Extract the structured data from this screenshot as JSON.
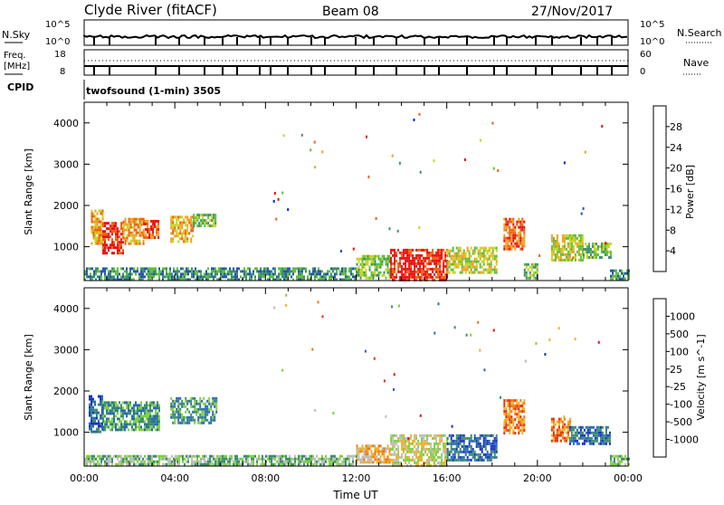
{
  "header": {
    "station": "Clyde River (fitACF)",
    "beam": "Beam 08",
    "date": "27/Nov/2017"
  },
  "noise_panel": {
    "left_label": "N.Sky",
    "right_label": "N.Search",
    "left_ticks": [
      "10^5",
      "10^0"
    ],
    "right_ticks": [
      "10^5",
      "10^0"
    ]
  },
  "freq_panel": {
    "left_label_line1": "Freq.",
    "left_label_line2": "[MHz]",
    "right_label": "Nave",
    "left_ticks": [
      "18",
      "8"
    ],
    "right_ticks": [
      "60",
      "0"
    ]
  },
  "cpid": {
    "label": "CPID",
    "value": "twofsound (1-min) 3505"
  },
  "chart_data": [
    {
      "type": "heatmap",
      "panel": "power",
      "ylabel": "Slant Range [km]",
      "xlabel": "",
      "xlim": [
        0,
        24
      ],
      "ylim": [
        180,
        4500
      ],
      "yticks": [
        "1000",
        "2000",
        "3000",
        "4000"
      ],
      "colorbar_label": "Power [dB]",
      "colorbar_ticks": [
        "4",
        "8",
        "12",
        "16",
        "20",
        "24",
        "28"
      ],
      "colorbar_colors": [
        "#0a20e0",
        "#2855b0",
        "#3b8f6a",
        "#5dbf3a",
        "#c8d420",
        "#f0a020",
        "#f06010",
        "#e81010"
      ],
      "echo_regions_hours_km_level": [
        {
          "t0": 0.3,
          "t1": 0.8,
          "r0": 1050,
          "r1": 1900,
          "level": 5
        },
        {
          "t0": 0.8,
          "t1": 1.7,
          "r0": 850,
          "r1": 1600,
          "level": 7
        },
        {
          "t0": 1.7,
          "t1": 2.6,
          "r0": 1100,
          "r1": 1700,
          "level": 5
        },
        {
          "t0": 2.6,
          "t1": 3.3,
          "r0": 1200,
          "r1": 1650,
          "level": 6
        },
        {
          "t0": 3.8,
          "t1": 4.8,
          "r0": 1150,
          "r1": 1750,
          "level": 5
        },
        {
          "t0": 4.8,
          "t1": 5.8,
          "r0": 1500,
          "r1": 1800,
          "level": 3
        },
        {
          "t0": 0.0,
          "t1": 12.0,
          "r0": 200,
          "r1": 500,
          "level": 2
        },
        {
          "t0": 12.0,
          "t1": 13.5,
          "r0": 250,
          "r1": 800,
          "level": 3
        },
        {
          "t0": 13.5,
          "t1": 16.0,
          "r0": 200,
          "r1": 950,
          "level": 7
        },
        {
          "t0": 16.0,
          "t1": 18.2,
          "r0": 350,
          "r1": 1000,
          "level": 4
        },
        {
          "t0": 18.5,
          "t1": 19.4,
          "r0": 950,
          "r1": 1700,
          "level": 6
        },
        {
          "t0": 19.4,
          "t1": 20.0,
          "r0": 250,
          "r1": 600,
          "level": 3
        },
        {
          "t0": 20.6,
          "t1": 22.0,
          "r0": 700,
          "r1": 1300,
          "level": 4
        },
        {
          "t0": 22.0,
          "t1": 23.2,
          "r0": 750,
          "r1": 1100,
          "level": 3
        },
        {
          "t0": 23.2,
          "t1": 24.0,
          "r0": 200,
          "r1": 450,
          "level": 2
        }
      ]
    },
    {
      "type": "heatmap",
      "panel": "velocity",
      "ylabel": "Slant Range [km]",
      "xlabel": "Time UT",
      "xlim": [
        0,
        24
      ],
      "ylim": [
        180,
        4500
      ],
      "xticks": [
        "00:00",
        "04:00",
        "08:00",
        "12:00",
        "16:00",
        "20:00",
        "00:00"
      ],
      "yticks": [
        "1000",
        "2000",
        "3000",
        "4000"
      ],
      "colorbar_label": "Velocity [m s^-1]",
      "colorbar_ticks": [
        "1000",
        "500",
        "100",
        "25",
        "-25",
        "-100",
        "-500",
        "-1000"
      ],
      "colorbar_colors": [
        "#1a30c8",
        "#2a6ab0",
        "#3b8f6a",
        "#7fd040",
        "#bdbdbd",
        "#f0b020",
        "#f07810",
        "#e83010",
        "#e80a0a"
      ],
      "echo_regions_hours_km_level": [
        {
          "t0": 0.2,
          "t1": 0.8,
          "r0": 1000,
          "r1": 1900,
          "level": 1
        },
        {
          "t0": 0.8,
          "t1": 3.3,
          "r0": 1050,
          "r1": 1750,
          "level": 2
        },
        {
          "t0": 3.8,
          "t1": 5.8,
          "r0": 1250,
          "r1": 1850,
          "level": 2
        },
        {
          "t0": 0.0,
          "t1": 12.0,
          "r0": 200,
          "r1": 450,
          "level": 3
        },
        {
          "t0": 12.0,
          "t1": 13.5,
          "r0": 250,
          "r1": 700,
          "level": 5
        },
        {
          "t0": 13.5,
          "t1": 16.0,
          "r0": 200,
          "r1": 950,
          "level": 4
        },
        {
          "t0": 16.0,
          "t1": 18.2,
          "r0": 300,
          "r1": 950,
          "level": 1
        },
        {
          "t0": 18.5,
          "t1": 19.4,
          "r0": 1000,
          "r1": 1800,
          "level": 6
        },
        {
          "t0": 20.6,
          "t1": 21.4,
          "r0": 800,
          "r1": 1350,
          "level": 6
        },
        {
          "t0": 21.4,
          "t1": 23.2,
          "r0": 700,
          "r1": 1150,
          "level": 1
        },
        {
          "t0": 23.2,
          "t1": 24.0,
          "r0": 200,
          "r1": 450,
          "level": 3
        }
      ]
    }
  ]
}
